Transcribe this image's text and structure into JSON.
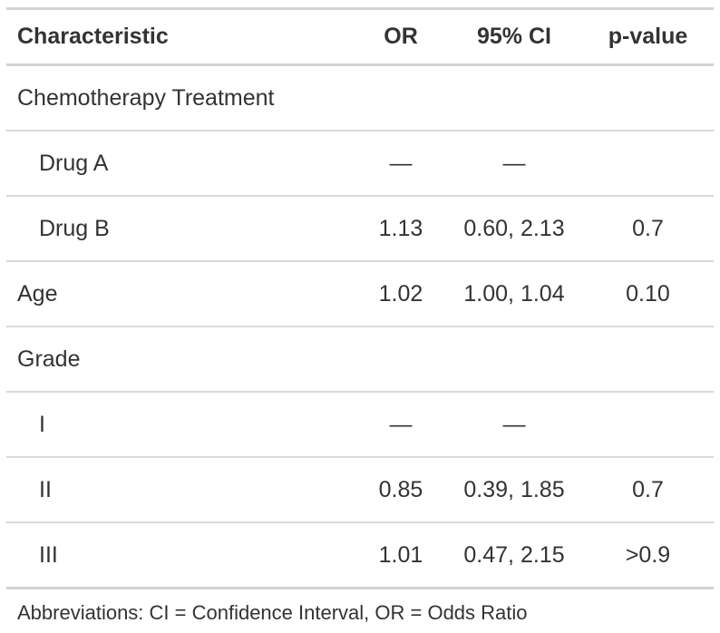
{
  "table": {
    "columns": [
      {
        "label": "Characteristic"
      },
      {
        "label": "OR"
      },
      {
        "label": "95% CI"
      },
      {
        "label": "p-value"
      }
    ],
    "rows": [
      {
        "label": "Chemotherapy Treatment",
        "indent": false,
        "or": "",
        "ci": "",
        "p": ""
      },
      {
        "label": "Drug A",
        "indent": true,
        "or": "—",
        "ci": "—",
        "p": ""
      },
      {
        "label": "Drug B",
        "indent": true,
        "or": "1.13",
        "ci": "0.60, 2.13",
        "p": "0.7"
      },
      {
        "label": "Age",
        "indent": false,
        "or": "1.02",
        "ci": "1.00, 1.04",
        "p": "0.10"
      },
      {
        "label": "Grade",
        "indent": false,
        "or": "",
        "ci": "",
        "p": ""
      },
      {
        "label": "I",
        "indent": true,
        "or": "—",
        "ci": "—",
        "p": ""
      },
      {
        "label": "II",
        "indent": true,
        "or": "0.85",
        "ci": "0.39, 1.85",
        "p": "0.7"
      },
      {
        "label": "III",
        "indent": true,
        "or": "1.01",
        "ci": "0.47, 2.15",
        "p": ">0.9"
      }
    ],
    "footnote": "Abbreviations: CI = Confidence Interval, OR = Odds Ratio"
  },
  "colors": {
    "text": "#333333",
    "background": "#FFFFFF",
    "border_light": "#D3D3D3",
    "border_separator": "#D9D9D9",
    "border_dark": "#A8A8A8"
  },
  "chart_data": {
    "type": "table",
    "title": "",
    "columns": [
      "Characteristic",
      "OR",
      "95% CI",
      "p-value"
    ],
    "rows": [
      [
        "Chemotherapy Treatment",
        "",
        "",
        ""
      ],
      [
        "Drug A",
        "—",
        "—",
        ""
      ],
      [
        "Drug B",
        "1.13",
        "0.60, 2.13",
        "0.7"
      ],
      [
        "Age",
        "1.02",
        "1.00, 1.04",
        "0.10"
      ],
      [
        "Grade",
        "",
        "",
        ""
      ],
      [
        "I",
        "—",
        "—",
        ""
      ],
      [
        "II",
        "0.85",
        "0.39, 1.85",
        "0.7"
      ],
      [
        "III",
        "1.01",
        "0.47, 2.15",
        ">0.9"
      ]
    ],
    "footnote": "Abbreviations: CI = Confidence Interval, OR = Odds Ratio",
    "layout": {
      "numeric_columns_align": "center",
      "indented_rows": [
        "Drug A",
        "Drug B",
        "I",
        "II",
        "III"
      ],
      "group_label_rows": [
        "Chemotherapy Treatment",
        "Grade"
      ]
    }
  }
}
